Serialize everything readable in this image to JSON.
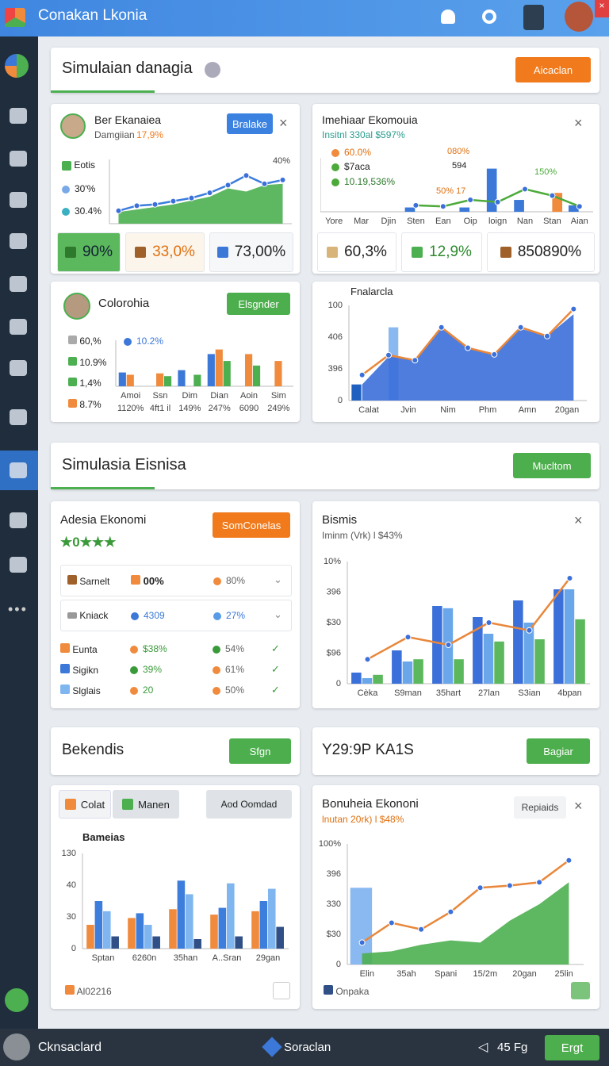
{
  "header": {
    "title": "Conakan Lkonia"
  },
  "section1": {
    "title": "Simulaian danagia",
    "button": "Aicaclan"
  },
  "card1": {
    "name": "Ber Ekanaiea",
    "subtitle": "Damgiian",
    "change": "17,9%",
    "button": "Bralake",
    "legend": [
      "Eotis",
      "30'%",
      "30.4%"
    ],
    "stats": [
      "90%",
      "33,0%",
      "73,00%"
    ]
  },
  "card2": {
    "title": "Imehiaar Ekomouia",
    "subtitle": "Insitnl 330al $597%",
    "legend": [
      "60.0%",
      "$7aca",
      "10.19,536%"
    ],
    "labels": [
      "080%",
      "594",
      "50% 17",
      "150%"
    ],
    "stats": [
      "60,3%",
      "12,9%",
      "850890%"
    ]
  },
  "card3": {
    "title": "Colorohia",
    "button": "Elsgnder",
    "legend": [
      "60,%",
      "10.9%",
      "1,4%",
      "8.7%"
    ],
    "highlight": "10.2%"
  },
  "card4": {
    "title": "Fnalarcla"
  },
  "section2": {
    "title": "Simulasia Eisnisa",
    "button": "Mucltom"
  },
  "card5": {
    "title": "Adesia Ekonomi",
    "rating": "★0★★★",
    "button": "SomConelas",
    "rows": [
      [
        "Sarnelt",
        "00%",
        "80%"
      ],
      [
        "Kniack",
        "4309",
        "27%"
      ],
      [
        "Eunta",
        "$38%",
        "54%"
      ],
      [
        "Sigikn",
        "39%",
        "61%"
      ],
      [
        "Slglais",
        "20",
        "50%"
      ]
    ]
  },
  "card6": {
    "title": "Bismis",
    "subtitle": "Iminm (Vrk) l $43%"
  },
  "section3": {
    "left_title": "Bekendis",
    "left_button": "Sfgn",
    "right_title": "Y29:9P KA1S",
    "right_button": "Bagiar"
  },
  "card7": {
    "tabs": [
      "Colat",
      "Manen"
    ],
    "dropdown": "Aod Oomdad",
    "title": "Bameias",
    "legend": "Al02216"
  },
  "card8": {
    "title": "Bonuheia Ekononi",
    "subtitle": "lnutan 20rk) l $48%",
    "button": "Repiaids",
    "legend": "Onpaka"
  },
  "footer": {
    "user": "Cknsaclard",
    "center": "Soraclan",
    "status": "45 Fg",
    "button": "Ergt"
  },
  "charts": {
    "c1": {
      "ylim": [
        0,
        100
      ],
      "annotation": "40%",
      "series": [
        {
          "type": "area",
          "color": "#4caf50",
          "values": [
            18,
            22,
            26,
            30,
            36,
            42,
            55,
            50,
            60,
            62
          ]
        },
        {
          "type": "line",
          "color": "#3b7ddd",
          "dots": true,
          "values": [
            20,
            28,
            30,
            35,
            40,
            48,
            60,
            75,
            62,
            68
          ]
        }
      ]
    },
    "c2": {
      "ylim": [
        0,
        100
      ],
      "x_labels": [
        "Yore",
        "Mar",
        "Djin",
        "Sten",
        "Ean",
        "Oip",
        "loign",
        "Nan",
        "Stan",
        "Aian"
      ],
      "series": [
        {
          "type": "bar",
          "color": "#3b78d8",
          "values": [
            null,
            null,
            null,
            8,
            null,
            8,
            80,
            22,
            null,
            12
          ]
        },
        {
          "type": "bar",
          "color": "#f08a3c",
          "values": [
            null,
            null,
            null,
            null,
            null,
            null,
            null,
            null,
            35,
            null
          ]
        },
        {
          "type": "line",
          "color": "#4caa3a",
          "dots": true,
          "values": [
            null,
            null,
            null,
            12,
            10,
            22,
            18,
            42,
            30,
            10
          ]
        }
      ]
    },
    "c3": {
      "ylim": [
        0,
        100
      ],
      "x_labels": [
        "Amoi",
        "Ssn",
        "Dim",
        "Dian",
        "Aoin",
        "Sim"
      ],
      "sub_labels": [
        "1120%",
        "4ft1 il",
        "149%",
        "247%",
        "6090",
        "249%"
      ],
      "series": [
        {
          "type": "bar",
          "color": "#3b78d8",
          "values": [
            30,
            null,
            35,
            70,
            null,
            null
          ]
        },
        {
          "type": "bar",
          "color": "#f08a3c",
          "values": [
            25,
            28,
            null,
            80,
            70,
            55
          ]
        },
        {
          "type": "bar",
          "color": "#4caf50",
          "values": [
            null,
            22,
            25,
            55,
            45,
            null
          ]
        }
      ]
    },
    "c4": {
      "ylim": [
        0,
        130
      ],
      "y_labels": [
        "100",
        "406",
        "396",
        "0"
      ],
      "x_labels": [
        "Calat",
        "Jvin",
        "Nim",
        "Phm",
        "Amn",
        "20gan"
      ],
      "series": [
        {
          "type": "bar",
          "color": "#1f5fbf",
          "values": [
            22,
            null,
            null,
            null,
            null,
            null,
            null,
            null,
            null
          ]
        },
        {
          "type": "bar",
          "color": "#8ab8f0",
          "values": [
            null,
            100,
            null,
            null,
            null,
            null,
            null,
            null,
            null
          ]
        },
        {
          "type": "area",
          "color": "#3b6fd9",
          "values": [
            22,
            60,
            56,
            100,
            72,
            63,
            98,
            88,
            118
          ]
        },
        {
          "type": "line",
          "color": "#e9873a",
          "dots": true,
          "values": [
            35,
            62,
            55,
            100,
            72,
            63,
            100,
            88,
            125
          ]
        }
      ]
    },
    "c6": {
      "ylim": [
        0,
        110
      ],
      "y_labels": [
        "10%",
        "396",
        "$30",
        "$96",
        "0"
      ],
      "x_labels": [
        "Cèka",
        "S9man",
        "35hart",
        "27lan",
        "S3ian",
        "4bpan"
      ],
      "series": [
        {
          "type": "bar",
          "color": "#3b6fd9",
          "values": [
            10,
            30,
            70,
            60,
            75,
            85
          ]
        },
        {
          "type": "bar",
          "color": "#6aa7ea",
          "values": [
            5,
            20,
            68,
            45,
            55,
            85
          ]
        },
        {
          "type": "bar",
          "color": "#5cb85c",
          "values": [
            8,
            22,
            22,
            38,
            40,
            58
          ]
        },
        {
          "type": "line",
          "color": "#e9873a",
          "dots": true,
          "values": [
            22,
            42,
            35,
            55,
            48,
            95
          ]
        }
      ]
    },
    "c7": {
      "ylim": [
        0,
        140
      ],
      "y_labels": [
        "130",
        "40",
        "30",
        "0"
      ],
      "x_labels": [
        "Sptan",
        "6260n",
        "35han",
        "A..Sran",
        "29gan"
      ],
      "series": [
        {
          "type": "bar",
          "color": "#f08a3c",
          "values": [
            35,
            45,
            58,
            50,
            55
          ]
        },
        {
          "type": "bar",
          "color": "#3d7ddb",
          "values": [
            70,
            52,
            100,
            60,
            70
          ]
        },
        {
          "type": "bar",
          "color": "#7fb6f0",
          "values": [
            55,
            35,
            80,
            96,
            88
          ]
        },
        {
          "type": "bar",
          "color": "#2f4f86",
          "values": [
            18,
            18,
            14,
            18,
            32
          ]
        }
      ]
    },
    "c8": {
      "ylim": [
        0,
        110
      ],
      "y_labels": [
        "100%",
        "396",
        "330",
        "$30",
        "0"
      ],
      "x_labels": [
        "Elin",
        "35ah",
        "Spani",
        "15/2m",
        "20gan",
        "25lin"
      ],
      "series": [
        {
          "type": "bar",
          "color": "#8ab8f0",
          "values": [
            70,
            null,
            null,
            null,
            null,
            null,
            null,
            null
          ]
        },
        {
          "type": "area",
          "color": "#4caf50",
          "values": [
            10,
            12,
            18,
            22,
            20,
            40,
            55,
            75
          ]
        },
        {
          "type": "line",
          "color": "#e9873a",
          "dots": true,
          "values": [
            20,
            38,
            32,
            48,
            70,
            72,
            75,
            95
          ]
        }
      ]
    }
  }
}
